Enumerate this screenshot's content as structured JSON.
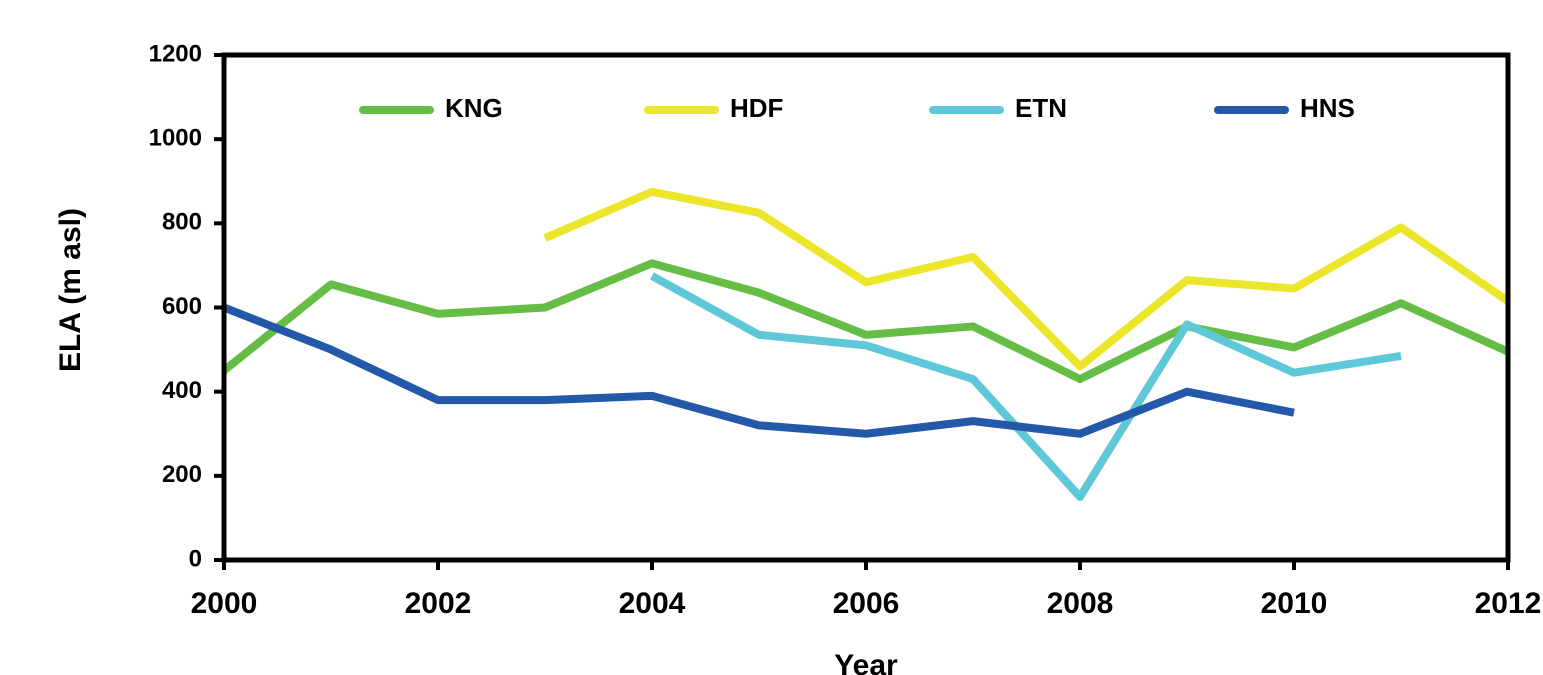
{
  "chart_data": {
    "type": "line",
    "x_label": "Year",
    "y_label": "ELA (m asl)",
    "x": [
      2000,
      2001,
      2002,
      2003,
      2004,
      2005,
      2006,
      2007,
      2008,
      2009,
      2010,
      2011,
      2012
    ],
    "series": [
      {
        "name": "KNG",
        "color": "#65bd45",
        "values": [
          450,
          655,
          585,
          600,
          705,
          635,
          535,
          555,
          430,
          555,
          505,
          610,
          495
        ]
      },
      {
        "name": "HDF",
        "color": "#ebe62a",
        "values": [
          null,
          null,
          null,
          765,
          875,
          825,
          660,
          720,
          460,
          665,
          645,
          790,
          615
        ]
      },
      {
        "name": "ETN",
        "color": "#5fc8d8",
        "values": [
          null,
          null,
          null,
          null,
          675,
          535,
          510,
          430,
          150,
          560,
          445,
          485,
          null
        ]
      },
      {
        "name": "HNS",
        "color": "#2458a8",
        "values": [
          600,
          500,
          380,
          380,
          390,
          320,
          300,
          330,
          300,
          400,
          350,
          null,
          null
        ]
      }
    ],
    "xlim": [
      2000,
      2012
    ],
    "xticks": [
      2000,
      2002,
      2004,
      2006,
      2008,
      2010,
      2012
    ],
    "ylim": [
      0,
      1200
    ],
    "yticks": [
      0,
      200,
      400,
      600,
      800,
      1000,
      1200
    ],
    "legend": "top"
  }
}
